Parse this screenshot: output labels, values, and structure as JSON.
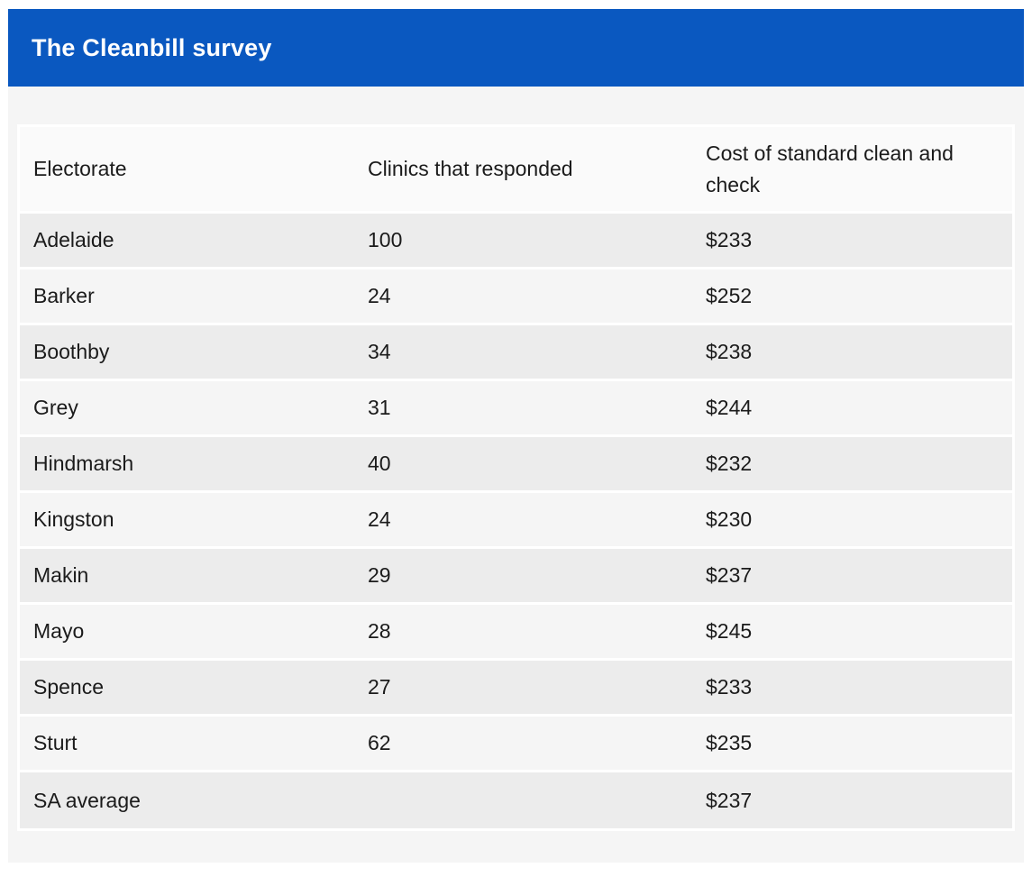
{
  "header": {
    "title": "The Cleanbill survey"
  },
  "colors": {
    "accent": "#0a58c0",
    "header_row": "#fafafa",
    "row_dark": "#ececec",
    "row_light": "#f5f5f5",
    "text": "#1b1b1b"
  },
  "table": {
    "columns": [
      {
        "key": "electorate",
        "label": "Electorate"
      },
      {
        "key": "clinics",
        "label": "Clinics that responded"
      },
      {
        "key": "cost",
        "label": "Cost of standard clean and check"
      }
    ],
    "rows": [
      {
        "electorate": "Adelaide",
        "clinics": "100",
        "cost": "$233"
      },
      {
        "electorate": "Barker",
        "clinics": "24",
        "cost": "$252"
      },
      {
        "electorate": "Boothby",
        "clinics": "34",
        "cost": "$238"
      },
      {
        "electorate": "Grey",
        "clinics": "31",
        "cost": "$244"
      },
      {
        "electorate": "Hindmarsh",
        "clinics": "40",
        "cost": "$232"
      },
      {
        "electorate": "Kingston",
        "clinics": "24",
        "cost": "$230"
      },
      {
        "electorate": "Makin",
        "clinics": "29",
        "cost": "$237"
      },
      {
        "electorate": "Mayo",
        "clinics": "28",
        "cost": "$245"
      },
      {
        "electorate": "Spence",
        "clinics": "27",
        "cost": "$233"
      },
      {
        "electorate": "Sturt",
        "clinics": "62",
        "cost": "$235"
      },
      {
        "electorate": "SA average",
        "clinics": "",
        "cost": "$237"
      }
    ]
  },
  "chart_data": {
    "type": "table",
    "title": "The Cleanbill survey",
    "columns": [
      "Electorate",
      "Clinics that responded",
      "Cost of standard clean and check"
    ],
    "rows": [
      [
        "Adelaide",
        100,
        "$233"
      ],
      [
        "Barker",
        24,
        "$252"
      ],
      [
        "Boothby",
        34,
        "$238"
      ],
      [
        "Grey",
        31,
        "$244"
      ],
      [
        "Hindmarsh",
        40,
        "$232"
      ],
      [
        "Kingston",
        24,
        "$230"
      ],
      [
        "Makin",
        29,
        "$237"
      ],
      [
        "Mayo",
        28,
        "$245"
      ],
      [
        "Spence",
        27,
        "$233"
      ],
      [
        "Sturt",
        62,
        "$235"
      ],
      [
        "SA average",
        null,
        "$237"
      ]
    ]
  }
}
